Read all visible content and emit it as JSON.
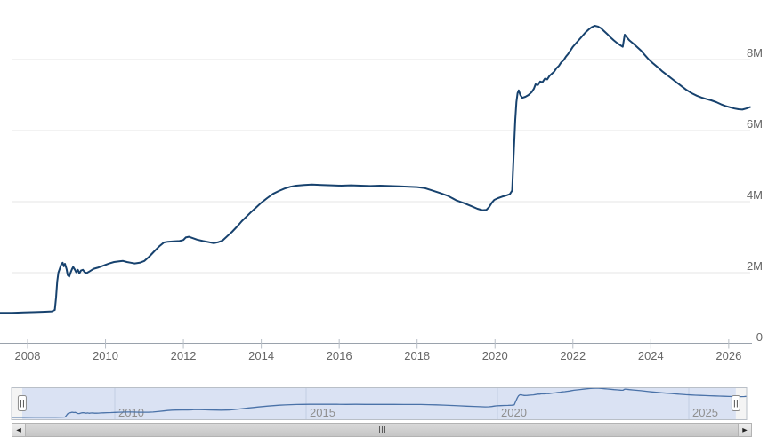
{
  "chart_data": {
    "type": "line",
    "title": "",
    "xlabel": "",
    "ylabel": "",
    "legend": "none",
    "grid": "horizontal",
    "xlim": [
      2007.29,
      2026.6
    ],
    "ylim": [
      0,
      9.675
    ],
    "yticks": [
      {
        "value": 8,
        "label": "8M"
      },
      {
        "value": 6,
        "label": "6M"
      },
      {
        "value": 4,
        "label": "4M"
      },
      {
        "value": 2,
        "label": "2M"
      },
      {
        "value": 0,
        "label": "0"
      }
    ],
    "xticks": [
      {
        "value": 2008,
        "label": "2008"
      },
      {
        "value": 2010,
        "label": "2010"
      },
      {
        "value": 2012,
        "label": "2012"
      },
      {
        "value": 2014,
        "label": "2014"
      },
      {
        "value": 2016,
        "label": "2016"
      },
      {
        "value": 2018,
        "label": "2018"
      },
      {
        "value": 2020,
        "label": "2020"
      },
      {
        "value": 2022,
        "label": "2022"
      },
      {
        "value": 2024,
        "label": "2024"
      },
      {
        "value": 2026,
        "label": "2026"
      }
    ],
    "series": [
      {
        "name": "series-1",
        "color": "#17426e",
        "points": [
          [
            2007.29,
            0.87
          ],
          [
            2007.6,
            0.87
          ],
          [
            2007.9,
            0.88
          ],
          [
            2008.2,
            0.89
          ],
          [
            2008.45,
            0.9
          ],
          [
            2008.62,
            0.91
          ],
          [
            2008.7,
            0.95
          ],
          [
            2008.73,
            1.3
          ],
          [
            2008.76,
            1.75
          ],
          [
            2008.79,
            2.0
          ],
          [
            2008.83,
            2.12
          ],
          [
            2008.87,
            2.25
          ],
          [
            2008.9,
            2.28
          ],
          [
            2008.93,
            2.18
          ],
          [
            2008.96,
            2.25
          ],
          [
            2009.0,
            2.1
          ],
          [
            2009.03,
            1.93
          ],
          [
            2009.07,
            1.89
          ],
          [
            2009.11,
            2.02
          ],
          [
            2009.14,
            2.1
          ],
          [
            2009.17,
            2.16
          ],
          [
            2009.21,
            2.09
          ],
          [
            2009.25,
            2.01
          ],
          [
            2009.29,
            2.08
          ],
          [
            2009.33,
            1.98
          ],
          [
            2009.37,
            2.06
          ],
          [
            2009.42,
            2.08
          ],
          [
            2009.47,
            2.01
          ],
          [
            2009.52,
            1.99
          ],
          [
            2009.58,
            2.03
          ],
          [
            2009.64,
            2.07
          ],
          [
            2009.7,
            2.11
          ],
          [
            2009.8,
            2.14
          ],
          [
            2009.9,
            2.18
          ],
          [
            2010.0,
            2.22
          ],
          [
            2010.1,
            2.26
          ],
          [
            2010.22,
            2.3
          ],
          [
            2010.35,
            2.32
          ],
          [
            2010.45,
            2.33
          ],
          [
            2010.55,
            2.3
          ],
          [
            2010.65,
            2.28
          ],
          [
            2010.75,
            2.26
          ],
          [
            2010.88,
            2.28
          ],
          [
            2011.0,
            2.33
          ],
          [
            2011.12,
            2.45
          ],
          [
            2011.25,
            2.6
          ],
          [
            2011.38,
            2.74
          ],
          [
            2011.5,
            2.85
          ],
          [
            2011.6,
            2.87
          ],
          [
            2011.75,
            2.88
          ],
          [
            2011.9,
            2.89
          ],
          [
            2012.0,
            2.92
          ],
          [
            2012.06,
            2.99
          ],
          [
            2012.14,
            3.01
          ],
          [
            2012.22,
            2.98
          ],
          [
            2012.35,
            2.93
          ],
          [
            2012.5,
            2.89
          ],
          [
            2012.65,
            2.86
          ],
          [
            2012.78,
            2.83
          ],
          [
            2012.9,
            2.86
          ],
          [
            2013.0,
            2.9
          ],
          [
            2013.12,
            3.02
          ],
          [
            2013.25,
            3.15
          ],
          [
            2013.38,
            3.3
          ],
          [
            2013.5,
            3.45
          ],
          [
            2013.62,
            3.58
          ],
          [
            2013.75,
            3.72
          ],
          [
            2013.88,
            3.85
          ],
          [
            2014.0,
            3.97
          ],
          [
            2014.15,
            4.1
          ],
          [
            2014.3,
            4.22
          ],
          [
            2014.45,
            4.3
          ],
          [
            2014.6,
            4.37
          ],
          [
            2014.75,
            4.42
          ],
          [
            2014.9,
            4.45
          ],
          [
            2015.1,
            4.47
          ],
          [
            2015.3,
            4.48
          ],
          [
            2015.55,
            4.47
          ],
          [
            2015.8,
            4.46
          ],
          [
            2016.05,
            4.45
          ],
          [
            2016.3,
            4.46
          ],
          [
            2016.55,
            4.45
          ],
          [
            2016.8,
            4.44
          ],
          [
            2017.05,
            4.45
          ],
          [
            2017.3,
            4.44
          ],
          [
            2017.55,
            4.43
          ],
          [
            2017.8,
            4.42
          ],
          [
            2018.0,
            4.41
          ],
          [
            2018.2,
            4.38
          ],
          [
            2018.4,
            4.31
          ],
          [
            2018.6,
            4.24
          ],
          [
            2018.8,
            4.16
          ],
          [
            2019.0,
            4.04
          ],
          [
            2019.2,
            3.96
          ],
          [
            2019.4,
            3.87
          ],
          [
            2019.55,
            3.8
          ],
          [
            2019.68,
            3.76
          ],
          [
            2019.78,
            3.77
          ],
          [
            2019.85,
            3.85
          ],
          [
            2019.92,
            3.97
          ],
          [
            2019.98,
            4.05
          ],
          [
            2020.08,
            4.1
          ],
          [
            2020.18,
            4.14
          ],
          [
            2020.28,
            4.17
          ],
          [
            2020.38,
            4.21
          ],
          [
            2020.44,
            4.31
          ],
          [
            2020.48,
            5.3
          ],
          [
            2020.52,
            6.3
          ],
          [
            2020.55,
            6.8
          ],
          [
            2020.58,
            7.05
          ],
          [
            2020.61,
            7.13
          ],
          [
            2020.65,
            7.0
          ],
          [
            2020.7,
            6.92
          ],
          [
            2020.78,
            6.95
          ],
          [
            2020.86,
            7.0
          ],
          [
            2020.94,
            7.08
          ],
          [
            2021.0,
            7.18
          ],
          [
            2021.04,
            7.3
          ],
          [
            2021.1,
            7.28
          ],
          [
            2021.16,
            7.38
          ],
          [
            2021.22,
            7.36
          ],
          [
            2021.28,
            7.46
          ],
          [
            2021.34,
            7.44
          ],
          [
            2021.4,
            7.54
          ],
          [
            2021.46,
            7.6
          ],
          [
            2021.52,
            7.66
          ],
          [
            2021.58,
            7.76
          ],
          [
            2021.64,
            7.82
          ],
          [
            2021.7,
            7.92
          ],
          [
            2021.76,
            7.98
          ],
          [
            2021.82,
            8.08
          ],
          [
            2021.88,
            8.16
          ],
          [
            2021.94,
            8.26
          ],
          [
            2022.0,
            8.36
          ],
          [
            2022.08,
            8.46
          ],
          [
            2022.16,
            8.56
          ],
          [
            2022.24,
            8.66
          ],
          [
            2022.32,
            8.76
          ],
          [
            2022.4,
            8.84
          ],
          [
            2022.48,
            8.91
          ],
          [
            2022.56,
            8.95
          ],
          [
            2022.64,
            8.93
          ],
          [
            2022.72,
            8.88
          ],
          [
            2022.8,
            8.8
          ],
          [
            2022.88,
            8.72
          ],
          [
            2022.96,
            8.63
          ],
          [
            2023.05,
            8.54
          ],
          [
            2023.14,
            8.46
          ],
          [
            2023.22,
            8.4
          ],
          [
            2023.28,
            8.36
          ],
          [
            2023.33,
            8.7
          ],
          [
            2023.38,
            8.63
          ],
          [
            2023.45,
            8.54
          ],
          [
            2023.55,
            8.45
          ],
          [
            2023.65,
            8.35
          ],
          [
            2023.75,
            8.25
          ],
          [
            2023.85,
            8.12
          ],
          [
            2023.95,
            8.0
          ],
          [
            2024.05,
            7.9
          ],
          [
            2024.18,
            7.78
          ],
          [
            2024.3,
            7.66
          ],
          [
            2024.42,
            7.56
          ],
          [
            2024.55,
            7.45
          ],
          [
            2024.68,
            7.34
          ],
          [
            2024.8,
            7.24
          ],
          [
            2024.92,
            7.14
          ],
          [
            2025.05,
            7.05
          ],
          [
            2025.18,
            6.98
          ],
          [
            2025.3,
            6.93
          ],
          [
            2025.42,
            6.89
          ],
          [
            2025.55,
            6.85
          ],
          [
            2025.68,
            6.8
          ],
          [
            2025.8,
            6.74
          ],
          [
            2025.92,
            6.69
          ],
          [
            2026.05,
            6.65
          ],
          [
            2026.15,
            6.62
          ],
          [
            2026.25,
            6.6
          ],
          [
            2026.35,
            6.59
          ],
          [
            2026.45,
            6.62
          ],
          [
            2026.55,
            6.66
          ]
        ]
      }
    ]
  },
  "navigator": {
    "xticks": [
      {
        "value": 2010,
        "label": "2010"
      },
      {
        "value": 2015,
        "label": "2015"
      },
      {
        "value": 2020,
        "label": "2020"
      },
      {
        "value": 2025,
        "label": "2025"
      }
    ],
    "selected_range": [
      2007.58,
      2026.23
    ],
    "line_color": "#4a72a8",
    "mask_color": "#dae2f3"
  },
  "scrollbar": {
    "left_icon": "◀",
    "right_icon": "▶"
  },
  "colors": {
    "grid": "#e6e6e6",
    "axis_line": "#9aa2ac",
    "tick": "#b8bec6",
    "axis_label": "#666666",
    "nav_label": "#8f8f8f",
    "nav_border": "#b9bfc7",
    "nav_grid": "#c3cde3",
    "nav_outside": "#f4f4f4",
    "handle_border": "#8c8c8c",
    "handle_rifle": "#555555"
  }
}
